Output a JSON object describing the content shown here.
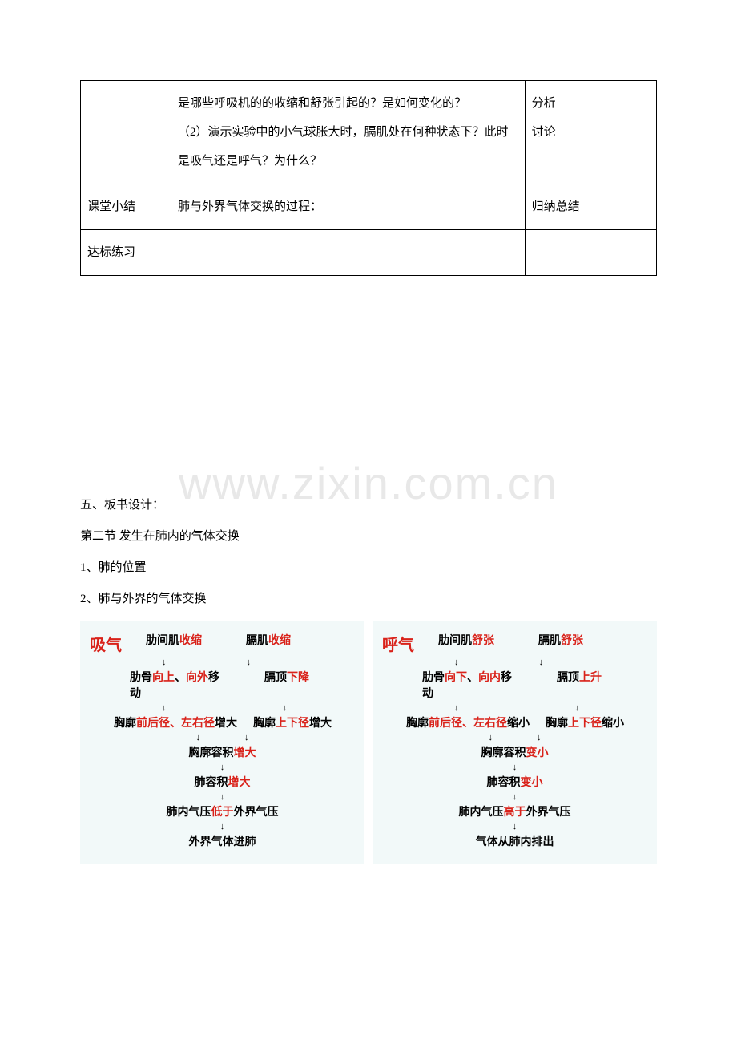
{
  "watermark": "www.zixin.com.cn",
  "table": {
    "borderColor": "#000000",
    "rows": [
      {
        "col1": "",
        "col2": "是哪些呼吸机的的收缩和舒张引起的？是如何变化的？\n（2）演示实验中的小气球胀大时，膈肌处在何种状态下？此时是吸气还是呼气？为什么？",
        "col3": "分析\n讨论"
      },
      {
        "col1": "课堂小结",
        "col2": "肺与外界气体交换的过程：",
        "col3": "归纳总结"
      },
      {
        "col1": "达标练习",
        "col2": "",
        "col3": ""
      }
    ]
  },
  "bodyText": {
    "line1": "五、板书设计：",
    "line2": "第二节 发生在肺内的气体交换",
    "line3": "1、肺的位置",
    "line4": "2、肺与外界的气体交换"
  },
  "flowcharts": {
    "backgroundColor": "#f2f9f9",
    "left": {
      "title": "吸气",
      "titleColor": "#d9221a",
      "top1_prefix": "肋间肌",
      "top1_suffix": "收缩",
      "top2_prefix": "膈肌",
      "top2_suffix": "收缩",
      "row2_1_prefix": "肋骨",
      "row2_1_mid1": "向上",
      "row2_1_sep": "、",
      "row2_1_mid2": "向外",
      "row2_1_suffix": "移动",
      "row2_2_prefix": "膈顶",
      "row2_2_suffix": "下降",
      "row3_1_prefix": "胸廓",
      "row3_1_mid": "前后径、左右径",
      "row3_1_suffix": "增大",
      "row3_2_prefix": "胸廓",
      "row3_2_mid": "上下径",
      "row3_2_suffix": "增大",
      "c1_prefix": "胸廓容积",
      "c1_suffix": "增大",
      "c2_prefix": "肺容积",
      "c2_suffix": "增大",
      "c3_prefix": "肺内气压",
      "c3_mid": "低于",
      "c3_suffix": "外界气压",
      "c4": "外界气体进肺"
    },
    "right": {
      "title": "呼气",
      "titleColor": "#d9221a",
      "top1_prefix": "肋间肌",
      "top1_suffix": "舒张",
      "top2_prefix": "膈肌",
      "top2_suffix": "舒张",
      "row2_1_prefix": "肋骨",
      "row2_1_mid1": "向下",
      "row2_1_sep": "、",
      "row2_1_mid2": "向内",
      "row2_1_suffix": "移动",
      "row2_2_prefix": "膈顶",
      "row2_2_suffix": "上升",
      "row3_1_prefix": "胸廓",
      "row3_1_mid": "前后径、左右径",
      "row3_1_suffix": "缩小",
      "row3_2_prefix": "胸廓",
      "row3_2_mid": "上下径",
      "row3_2_suffix": "缩小",
      "c1_prefix": "胸廓容积",
      "c1_suffix": "变小",
      "c2_prefix": "肺容积",
      "c2_suffix": "变小",
      "c3_prefix": "肺内气压",
      "c3_mid": "高于",
      "c3_suffix": "外界气压",
      "c4": "气体从肺内排出"
    },
    "arrow": "↓",
    "mergeArrows": "↓　　　　↓"
  }
}
